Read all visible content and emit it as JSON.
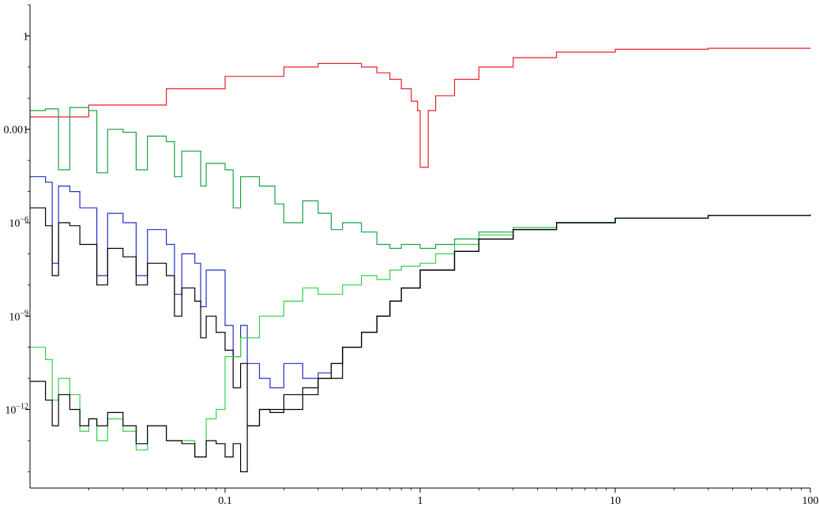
{
  "chart_data": {
    "type": "line",
    "step": true,
    "title": "",
    "xlabel": "",
    "ylabel": "",
    "xscale": "log",
    "yscale": "log",
    "xlim": [
      0.01,
      100
    ],
    "ylim": [
      3e-15,
      10
    ],
    "grid": false,
    "legend": "none",
    "xticks": [
      {
        "value": 0.1,
        "label": "0.1"
      },
      {
        "value": 1,
        "label": "1"
      },
      {
        "value": 10,
        "label": "10"
      },
      {
        "value": 100,
        "label": "100"
      }
    ],
    "yticks": [
      {
        "value": 1,
        "base": "1",
        "exp": ""
      },
      {
        "value": 0.001,
        "base": "0.001",
        "exp": ""
      },
      {
        "value": 1e-06,
        "base": "10",
        "exp": "−6"
      },
      {
        "value": 1e-09,
        "base": "10",
        "exp": "−9"
      },
      {
        "value": 1e-12,
        "base": "10",
        "exp": "−12"
      }
    ],
    "series": [
      {
        "color": "#e8202a",
        "points": [
          [
            0.01,
            0.0025
          ],
          [
            0.02,
            0.006
          ],
          [
            0.05,
            0.02
          ],
          [
            0.1,
            0.05
          ],
          [
            0.2,
            0.1
          ],
          [
            0.3,
            0.13
          ],
          [
            0.4,
            0.13
          ],
          [
            0.5,
            0.1
          ],
          [
            0.6,
            0.065
          ],
          [
            0.7,
            0.04
          ],
          [
            0.8,
            0.02
          ],
          [
            0.9,
            0.008
          ],
          [
            0.97,
            0.004
          ],
          [
            1.0,
            6e-05
          ],
          [
            1.07,
            6e-05
          ],
          [
            1.1,
            0.004
          ],
          [
            1.2,
            0.012
          ],
          [
            1.5,
            0.04
          ],
          [
            2,
            0.1
          ],
          [
            3,
            0.2
          ],
          [
            5,
            0.3
          ],
          [
            10,
            0.37
          ],
          [
            30,
            0.4
          ],
          [
            100,
            0.41
          ]
        ]
      },
      {
        "color": "#17a346",
        "points": [
          [
            0.01,
            0.004
          ],
          [
            0.012,
            0.0045
          ],
          [
            0.013,
            0.0045
          ],
          [
            0.014,
            5e-05
          ],
          [
            0.016,
            0.005
          ],
          [
            0.02,
            0.004
          ],
          [
            0.022,
            4e-05
          ],
          [
            0.025,
            0.001
          ],
          [
            0.03,
            0.0008
          ],
          [
            0.035,
            5e-05
          ],
          [
            0.04,
            0.0006
          ],
          [
            0.05,
            0.0004
          ],
          [
            0.055,
            3e-05
          ],
          [
            0.06,
            0.0002
          ],
          [
            0.07,
            0.0002
          ],
          [
            0.075,
            1.5e-05
          ],
          [
            0.08,
            8e-05
          ],
          [
            0.1,
            5e-05
          ],
          [
            0.11,
            3e-06
          ],
          [
            0.12,
            3e-05
          ],
          [
            0.15,
            1.5e-05
          ],
          [
            0.18,
            4e-06
          ],
          [
            0.2,
            1e-06
          ],
          [
            0.25,
            5e-06
          ],
          [
            0.3,
            2e-06
          ],
          [
            0.35,
            6e-07
          ],
          [
            0.4,
            1e-06
          ],
          [
            0.5,
            5e-07
          ],
          [
            0.6,
            2e-07
          ],
          [
            0.7,
            1.5e-07
          ],
          [
            0.8,
            2e-07
          ],
          [
            1,
            1.5e-07
          ],
          [
            1.2,
            2e-07
          ],
          [
            1.5,
            3e-07
          ],
          [
            2,
            5e-07
          ],
          [
            3,
            7e-07
          ],
          [
            5,
            1e-06
          ],
          [
            10,
            1.4e-06
          ],
          [
            30,
            1.7e-06
          ],
          [
            100,
            1.8e-06
          ]
        ]
      },
      {
        "color": "#2230c8",
        "points": [
          [
            0.01,
            3e-05
          ],
          [
            0.012,
            2e-05
          ],
          [
            0.013,
            5e-08
          ],
          [
            0.014,
            1.5e-05
          ],
          [
            0.016,
            1e-05
          ],
          [
            0.018,
            3e-06
          ],
          [
            0.02,
            3e-06
          ],
          [
            0.022,
            2e-08
          ],
          [
            0.025,
            2e-06
          ],
          [
            0.03,
            1e-06
          ],
          [
            0.035,
            2e-08
          ],
          [
            0.04,
            6e-07
          ],
          [
            0.05,
            2e-07
          ],
          [
            0.055,
            5e-09
          ],
          [
            0.06,
            1e-07
          ],
          [
            0.07,
            5e-08
          ],
          [
            0.075,
            2e-09
          ],
          [
            0.08,
            3e-08
          ],
          [
            0.1,
            5e-10
          ],
          [
            0.11,
            5e-11
          ],
          [
            0.12,
            5e-10
          ],
          [
            0.13,
            3e-11
          ],
          [
            0.15,
            1e-11
          ],
          [
            0.17,
            5e-12
          ],
          [
            0.2,
            3e-11
          ],
          [
            0.25,
            1e-11
          ],
          [
            0.3,
            1.5e-11
          ],
          [
            0.35,
            3e-11
          ],
          [
            0.4,
            1e-10
          ],
          [
            0.5,
            3e-10
          ],
          [
            0.6,
            1e-09
          ],
          [
            0.7,
            3e-09
          ],
          [
            0.8,
            8e-09
          ],
          [
            1,
            3e-08
          ],
          [
            1.5,
            1.2e-07
          ],
          [
            2,
            3e-07
          ],
          [
            3,
            6e-07
          ],
          [
            5,
            1e-06
          ],
          [
            10,
            1.4e-06
          ],
          [
            30,
            1.7e-06
          ],
          [
            100,
            1.8e-06
          ]
        ]
      },
      {
        "color": "#000000",
        "points": [
          [
            0.01,
            3e-06
          ],
          [
            0.012,
            8e-07
          ],
          [
            0.013,
            2e-08
          ],
          [
            0.014,
            1e-06
          ],
          [
            0.016,
            8e-07
          ],
          [
            0.018,
            2e-07
          ],
          [
            0.02,
            2e-07
          ],
          [
            0.022,
            1e-08
          ],
          [
            0.025,
            1.5e-07
          ],
          [
            0.03,
            8e-08
          ],
          [
            0.035,
            1e-08
          ],
          [
            0.04,
            5e-08
          ],
          [
            0.05,
            2e-08
          ],
          [
            0.055,
            1e-09
          ],
          [
            0.06,
            8e-09
          ],
          [
            0.07,
            3e-09
          ],
          [
            0.075,
            2e-10
          ],
          [
            0.08,
            1e-09
          ],
          [
            0.09,
            3e-10
          ],
          [
            0.1,
            8e-11
          ],
          [
            0.11,
            5e-12
          ],
          [
            0.12,
            3e-11
          ],
          [
            0.13,
            3e-13
          ],
          [
            0.15,
            1e-12
          ],
          [
            0.17,
            8e-13
          ],
          [
            0.2,
            1e-12
          ],
          [
            0.25,
            3e-12
          ],
          [
            0.3,
            1e-11
          ],
          [
            0.35,
            3e-11
          ],
          [
            0.4,
            1e-10
          ],
          [
            0.5,
            3e-10
          ],
          [
            0.6,
            1e-09
          ],
          [
            0.7,
            3e-09
          ],
          [
            0.8,
            8e-09
          ],
          [
            1,
            3e-08
          ],
          [
            1.5,
            1.2e-07
          ],
          [
            2,
            3e-07
          ],
          [
            3,
            6e-07
          ],
          [
            5,
            1e-06
          ],
          [
            10,
            1.4e-06
          ],
          [
            30,
            1.7e-06
          ],
          [
            100,
            1.8e-06
          ]
        ]
      },
      {
        "color": "#33d14a",
        "points": [
          [
            0.01,
            1e-10
          ],
          [
            0.012,
            4e-11
          ],
          [
            0.013,
            2e-12
          ],
          [
            0.014,
            1e-11
          ],
          [
            0.016,
            3e-12
          ],
          [
            0.018,
            2e-13
          ],
          [
            0.02,
            5e-13
          ],
          [
            0.022,
            1e-13
          ],
          [
            0.025,
            5e-13
          ],
          [
            0.03,
            2e-13
          ],
          [
            0.035,
            5e-14
          ],
          [
            0.04,
            3e-13
          ],
          [
            0.05,
            1e-13
          ],
          [
            0.06,
            1e-13
          ],
          [
            0.07,
            3e-14
          ],
          [
            0.08,
            5e-13
          ],
          [
            0.09,
            1e-12
          ],
          [
            0.1,
            5e-11
          ],
          [
            0.12,
            2e-10
          ],
          [
            0.15,
            1e-09
          ],
          [
            0.2,
            3e-09
          ],
          [
            0.25,
            8e-09
          ],
          [
            0.3,
            5e-09
          ],
          [
            0.4,
            1e-08
          ],
          [
            0.5,
            2e-08
          ],
          [
            0.6,
            1.5e-08
          ],
          [
            0.7,
            3e-08
          ],
          [
            0.8,
            4e-08
          ],
          [
            1,
            5e-08
          ],
          [
            1.2,
            1e-07
          ],
          [
            1.5,
            2e-07
          ],
          [
            2,
            4e-07
          ],
          [
            3,
            7e-07
          ],
          [
            5,
            1e-06
          ],
          [
            10,
            1.4e-06
          ],
          [
            30,
            1.7e-06
          ],
          [
            100,
            1.8e-06
          ]
        ]
      },
      {
        "color": "#000000",
        "points": [
          [
            0.01,
            8e-12
          ],
          [
            0.012,
            2e-12
          ],
          [
            0.013,
            3e-13
          ],
          [
            0.014,
            3e-12
          ],
          [
            0.016,
            1e-12
          ],
          [
            0.018,
            3e-13
          ],
          [
            0.02,
            5e-13
          ],
          [
            0.022,
            3e-13
          ],
          [
            0.025,
            8e-13
          ],
          [
            0.03,
            3e-13
          ],
          [
            0.035,
            8e-14
          ],
          [
            0.04,
            3e-13
          ],
          [
            0.05,
            1e-13
          ],
          [
            0.06,
            8e-14
          ],
          [
            0.07,
            3e-14
          ],
          [
            0.08,
            1e-13
          ],
          [
            0.09,
            8e-14
          ],
          [
            0.1,
            3e-14
          ],
          [
            0.11,
            8e-14
          ],
          [
            0.12,
            1e-14
          ],
          [
            0.13,
            3e-13
          ],
          [
            0.15,
            1e-12
          ],
          [
            0.2,
            3e-12
          ],
          [
            0.25,
            5e-12
          ],
          [
            0.3,
            1e-11
          ],
          [
            0.4,
            1e-10
          ],
          [
            0.5,
            3e-10
          ],
          [
            0.6,
            1e-09
          ],
          [
            0.7,
            3e-09
          ],
          [
            0.8,
            8e-09
          ],
          [
            1,
            3e-08
          ],
          [
            1.5,
            1.2e-07
          ],
          [
            2,
            3e-07
          ],
          [
            3,
            6e-07
          ],
          [
            5,
            1e-06
          ],
          [
            10,
            1.4e-06
          ],
          [
            30,
            1.7e-06
          ],
          [
            100,
            1.8e-06
          ]
        ]
      }
    ]
  }
}
